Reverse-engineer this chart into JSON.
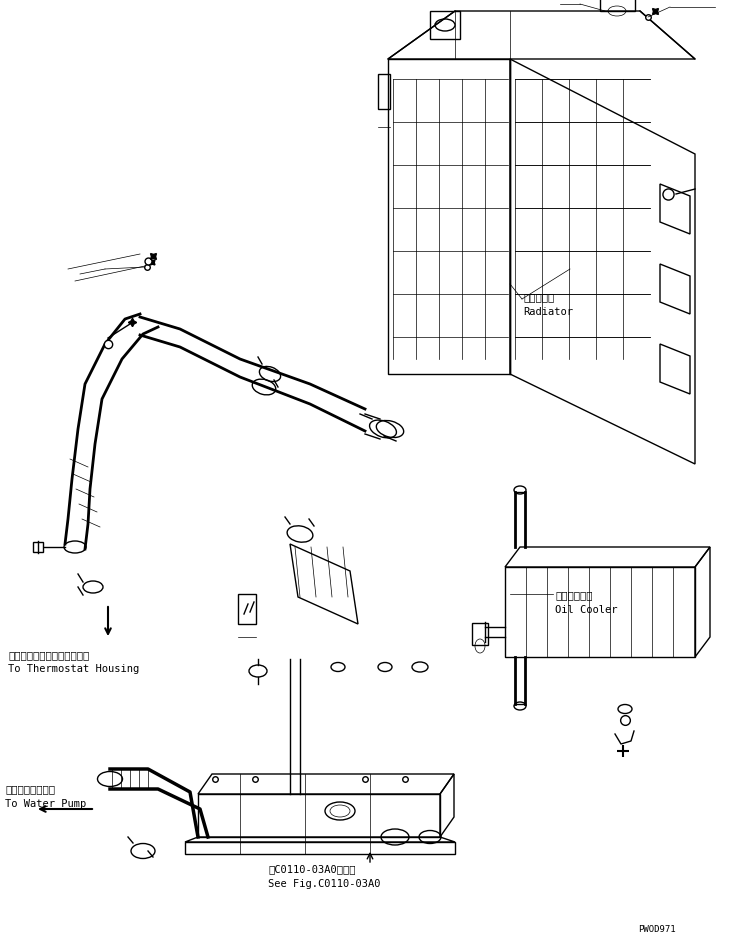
{
  "bg_color": "#ffffff",
  "line_color": "#000000",
  "line_width": 1.0,
  "thin_line": 0.5,
  "fig_width": 7.29,
  "fig_height": 9.37,
  "dpi": 100,
  "labels": {
    "radiator_ja": "ラジエータ",
    "radiator_en": "Radiator",
    "oil_cooler_ja": "オイルクーラ",
    "oil_cooler_en": "Oil Cooler",
    "thermostat_ja": "サーモスタットハウジングへ",
    "thermostat_en": "To Thermostat Housing",
    "waterpump_ja": "ウォータポンプへ",
    "waterpump_en": "To Water Pump",
    "see_fig_ja": "第C0110-03A0図参照",
    "see_fig_en": "See Fig.C0110-03A0",
    "part_no": "PWOD971"
  },
  "font_size_label": 7.5,
  "font_size_small": 6.5
}
